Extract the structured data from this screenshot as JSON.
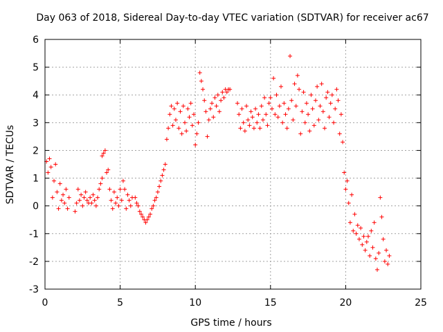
{
  "chart_data": {
    "type": "scatter",
    "title": "Day 063 of 2018, Sidereal Day-to-day VTEC variation (SDTVAR) for receiver ac67",
    "xlabel": "GPS time / hours",
    "ylabel": "SDTVAR / TECUs",
    "xlim": [
      0,
      25
    ],
    "ylim": [
      -3,
      6
    ],
    "xticks": [
      "0",
      "5",
      "10",
      "15",
      "20",
      "25"
    ],
    "yticks": [
      "-3",
      "-2",
      "-1",
      "0",
      "1",
      "2",
      "3",
      "4",
      "5",
      "6"
    ],
    "grid": true,
    "marker": "+",
    "color": "#ff0000",
    "series": [
      {
        "name": "SDTVAR",
        "points": [
          [
            0.1,
            1.6
          ],
          [
            0.2,
            1.2
          ],
          [
            0.3,
            1.7
          ],
          [
            0.4,
            1.4
          ],
          [
            0.5,
            0.3
          ],
          [
            0.6,
            0.9
          ],
          [
            0.7,
            1.5
          ],
          [
            0.8,
            0.5
          ],
          [
            0.9,
            -0.1
          ],
          [
            1.0,
            0.8
          ],
          [
            1.1,
            0.2
          ],
          [
            1.2,
            0.4
          ],
          [
            1.3,
            0.1
          ],
          [
            1.4,
            0.6
          ],
          [
            1.5,
            -0.1
          ],
          [
            1.6,
            0.3
          ],
          [
            2.0,
            -0.2
          ],
          [
            2.1,
            0.1
          ],
          [
            2.2,
            0.6
          ],
          [
            2.3,
            0.2
          ],
          [
            2.4,
            0.4
          ],
          [
            2.5,
            0.0
          ],
          [
            2.6,
            0.3
          ],
          [
            2.7,
            0.5
          ],
          [
            2.8,
            0.2
          ],
          [
            2.9,
            0.1
          ],
          [
            3.0,
            0.3
          ],
          [
            3.1,
            0.1
          ],
          [
            3.2,
            0.4
          ],
          [
            3.3,
            0.2
          ],
          [
            3.4,
            0.0
          ],
          [
            3.5,
            0.3
          ],
          [
            3.6,
            0.6
          ],
          [
            3.7,
            0.8
          ],
          [
            3.8,
            1.0
          ],
          [
            3.8,
            1.8
          ],
          [
            3.9,
            1.9
          ],
          [
            4.0,
            2.0
          ],
          [
            4.1,
            1.2
          ],
          [
            4.2,
            1.3
          ],
          [
            4.3,
            0.6
          ],
          [
            4.4,
            0.2
          ],
          [
            4.5,
            -0.1
          ],
          [
            4.6,
            0.5
          ],
          [
            4.7,
            0.1
          ],
          [
            4.8,
            0.3
          ],
          [
            4.9,
            0.0
          ],
          [
            5.0,
            0.6
          ],
          [
            5.1,
            0.2
          ],
          [
            5.2,
            0.9
          ],
          [
            5.3,
            0.6
          ],
          [
            5.4,
            -0.1
          ],
          [
            5.5,
            0.4
          ],
          [
            5.6,
            0.2
          ],
          [
            5.7,
            0.0
          ],
          [
            5.8,
            0.3
          ],
          [
            6.0,
            0.3
          ],
          [
            6.1,
            0.1
          ],
          [
            6.2,
            0.0
          ],
          [
            6.3,
            -0.2
          ],
          [
            6.4,
            -0.3
          ],
          [
            6.5,
            -0.4
          ],
          [
            6.6,
            -0.5
          ],
          [
            6.7,
            -0.6
          ],
          [
            6.8,
            -0.5
          ],
          [
            6.9,
            -0.4
          ],
          [
            7.0,
            -0.3
          ],
          [
            7.1,
            -0.1
          ],
          [
            7.2,
            0.0
          ],
          [
            7.3,
            0.2
          ],
          [
            7.4,
            0.3
          ],
          [
            7.5,
            0.5
          ],
          [
            7.6,
            0.7
          ],
          [
            7.7,
            0.9
          ],
          [
            7.8,
            1.1
          ],
          [
            7.9,
            1.3
          ],
          [
            8.0,
            1.5
          ],
          [
            8.1,
            2.4
          ],
          [
            8.2,
            2.8
          ],
          [
            8.3,
            3.3
          ],
          [
            8.4,
            3.6
          ],
          [
            8.5,
            2.9
          ],
          [
            8.6,
            3.5
          ],
          [
            8.7,
            3.1
          ],
          [
            8.8,
            3.7
          ],
          [
            8.9,
            2.8
          ],
          [
            9.0,
            3.4
          ],
          [
            9.1,
            2.6
          ],
          [
            9.2,
            3.6
          ],
          [
            9.3,
            3.0
          ],
          [
            9.4,
            2.7
          ],
          [
            9.5,
            3.5
          ],
          [
            9.6,
            3.2
          ],
          [
            9.7,
            3.7
          ],
          [
            9.8,
            2.9
          ],
          [
            9.9,
            3.3
          ],
          [
            10.0,
            2.2
          ],
          [
            10.1,
            2.6
          ],
          [
            10.2,
            3.0
          ],
          [
            10.3,
            4.8
          ],
          [
            10.4,
            4.5
          ],
          [
            10.5,
            4.2
          ],
          [
            10.6,
            3.8
          ],
          [
            10.7,
            3.4
          ],
          [
            10.8,
            2.5
          ],
          [
            10.9,
            3.1
          ],
          [
            11.0,
            3.5
          ],
          [
            11.1,
            3.7
          ],
          [
            11.2,
            3.2
          ],
          [
            11.3,
            3.9
          ],
          [
            11.4,
            3.6
          ],
          [
            11.5,
            4.0
          ],
          [
            11.6,
            3.4
          ],
          [
            11.7,
            3.8
          ],
          [
            11.8,
            4.1
          ],
          [
            11.9,
            3.9
          ],
          [
            12.0,
            4.2
          ],
          [
            12.1,
            4.1
          ],
          [
            12.2,
            4.2
          ],
          [
            12.3,
            4.2
          ],
          [
            12.8,
            3.7
          ],
          [
            12.9,
            3.3
          ],
          [
            13.0,
            2.8
          ],
          [
            13.1,
            3.5
          ],
          [
            13.2,
            3.0
          ],
          [
            13.3,
            2.7
          ],
          [
            13.4,
            3.6
          ],
          [
            13.5,
            3.1
          ],
          [
            13.6,
            2.9
          ],
          [
            13.7,
            3.4
          ],
          [
            13.8,
            3.2
          ],
          [
            13.9,
            2.8
          ],
          [
            14.0,
            3.5
          ],
          [
            14.1,
            3.0
          ],
          [
            14.2,
            3.3
          ],
          [
            14.3,
            2.8
          ],
          [
            14.4,
            3.6
          ],
          [
            14.5,
            3.1
          ],
          [
            14.6,
            3.9
          ],
          [
            14.7,
            3.3
          ],
          [
            14.8,
            2.9
          ],
          [
            14.9,
            3.7
          ],
          [
            15.0,
            3.9
          ],
          [
            15.1,
            3.5
          ],
          [
            15.2,
            4.6
          ],
          [
            15.3,
            3.3
          ],
          [
            15.4,
            4.0
          ],
          [
            15.5,
            3.2
          ],
          [
            15.6,
            3.6
          ],
          [
            15.7,
            4.3
          ],
          [
            15.8,
            3.0
          ],
          [
            15.9,
            3.7
          ],
          [
            16.0,
            3.3
          ],
          [
            16.1,
            2.8
          ],
          [
            16.2,
            3.5
          ],
          [
            16.3,
            5.4
          ],
          [
            16.4,
            3.8
          ],
          [
            16.5,
            3.1
          ],
          [
            16.6,
            4.4
          ],
          [
            16.7,
            3.6
          ],
          [
            16.8,
            4.7
          ],
          [
            16.9,
            4.2
          ],
          [
            17.0,
            2.6
          ],
          [
            17.1,
            3.4
          ],
          [
            17.2,
            4.1
          ],
          [
            17.3,
            3.0
          ],
          [
            17.4,
            3.7
          ],
          [
            17.5,
            3.3
          ],
          [
            17.6,
            2.7
          ],
          [
            17.7,
            4.0
          ],
          [
            17.8,
            3.5
          ],
          [
            17.9,
            2.9
          ],
          [
            18.0,
            3.8
          ],
          [
            18.1,
            4.3
          ],
          [
            18.2,
            3.1
          ],
          [
            18.3,
            3.6
          ],
          [
            18.4,
            4.4
          ],
          [
            18.5,
            3.4
          ],
          [
            18.6,
            2.8
          ],
          [
            18.7,
            3.9
          ],
          [
            18.8,
            4.1
          ],
          [
            18.9,
            3.2
          ],
          [
            19.0,
            3.7
          ],
          [
            19.1,
            4.0
          ],
          [
            19.2,
            3.0
          ],
          [
            19.3,
            3.5
          ],
          [
            19.4,
            4.2
          ],
          [
            19.5,
            3.8
          ],
          [
            19.6,
            2.6
          ],
          [
            19.7,
            3.3
          ],
          [
            19.8,
            2.3
          ],
          [
            19.9,
            1.2
          ],
          [
            20.0,
            0.6
          ],
          [
            20.1,
            0.9
          ],
          [
            20.2,
            0.1
          ],
          [
            20.3,
            -0.6
          ],
          [
            20.4,
            0.4
          ],
          [
            20.5,
            -0.9
          ],
          [
            20.6,
            -0.3
          ],
          [
            20.7,
            -1.0
          ],
          [
            20.8,
            -0.7
          ],
          [
            20.9,
            -1.2
          ],
          [
            21.0,
            -0.8
          ],
          [
            21.1,
            -1.4
          ],
          [
            21.2,
            -1.1
          ],
          [
            21.3,
            -1.6
          ],
          [
            21.4,
            -1.3
          ],
          [
            21.5,
            -1.1
          ],
          [
            21.6,
            -1.8
          ],
          [
            21.7,
            -0.9
          ],
          [
            21.8,
            -1.5
          ],
          [
            21.9,
            -0.6
          ],
          [
            22.0,
            -1.9
          ],
          [
            22.1,
            -2.3
          ],
          [
            22.2,
            -1.7
          ],
          [
            22.3,
            0.3
          ],
          [
            22.4,
            -0.4
          ],
          [
            22.5,
            -1.2
          ],
          [
            22.6,
            -2.0
          ],
          [
            22.7,
            -1.6
          ],
          [
            22.8,
            -2.1
          ],
          [
            22.9,
            -1.8
          ]
        ]
      }
    ]
  }
}
